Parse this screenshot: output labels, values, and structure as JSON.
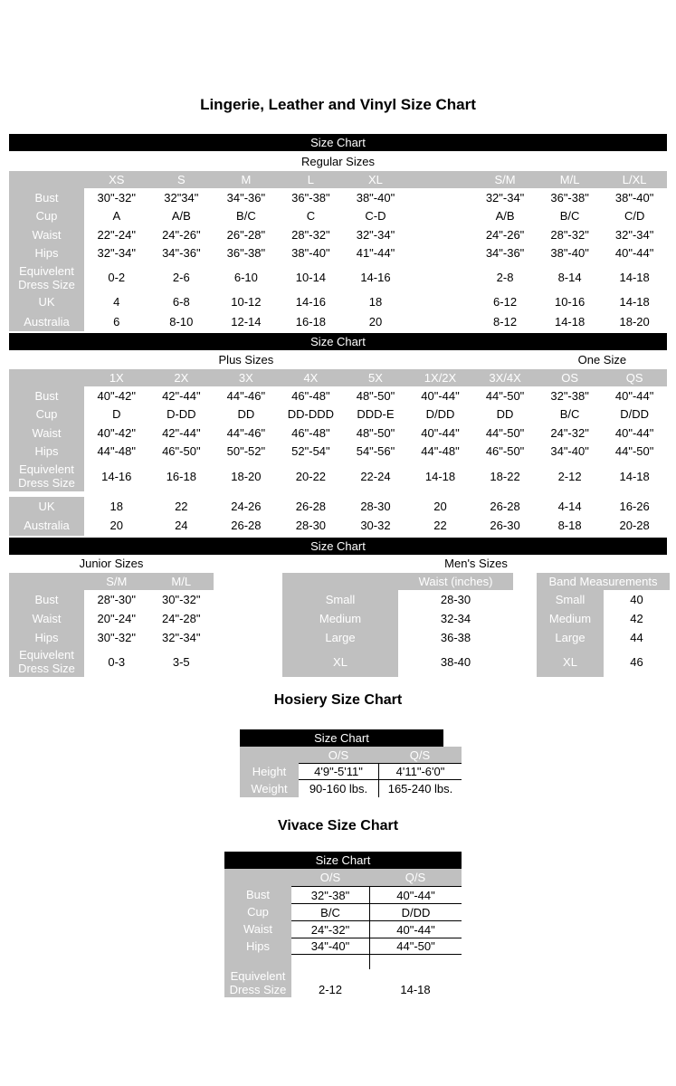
{
  "page": {
    "title": "Lingerie, Leather and Vinyl Size Chart"
  },
  "size_chart_label": "Size Chart",
  "regular": {
    "subtitle": "Regular Sizes",
    "columns": [
      "XS",
      "S",
      "M",
      "L",
      "XL",
      "",
      "S/M",
      "M/L",
      "L/XL"
    ],
    "rows": [
      {
        "label": "Bust",
        "cells": [
          "30\"-32\"",
          "32\"34\"",
          "34\"-36\"",
          "36\"-38\"",
          "38\"-40\"",
          "",
          "32\"-34\"",
          "36\"-38\"",
          "38\"-40\""
        ]
      },
      {
        "label": "Cup",
        "cells": [
          "A",
          "A/B",
          "B/C",
          "C",
          "C-D",
          "",
          "A/B",
          "B/C",
          "C/D"
        ]
      },
      {
        "label": "Waist",
        "cells": [
          "22\"-24\"",
          "24\"-26\"",
          "26\"-28\"",
          "28\"-32\"",
          "32\"-34\"",
          "",
          "24\"-26\"",
          "28\"-32\"",
          "32\"-34\""
        ]
      },
      {
        "label": "Hips",
        "cells": [
          "32\"-34\"",
          "34\"-36\"",
          "36\"-38\"",
          "38\"-40\"",
          "41\"-44\"",
          "",
          "34\"-36\"",
          "38\"-40\"",
          "40\"-44\""
        ]
      },
      {
        "label": "Equivelent Dress Size",
        "cells": [
          "0-2",
          "2-6",
          "6-10",
          "10-14",
          "14-16",
          "",
          "2-8",
          "8-14",
          "14-18"
        ]
      },
      {
        "label": "UK",
        "cells": [
          "4",
          "6-8",
          "10-12",
          "14-16",
          "18",
          "",
          "6-12",
          "10-16",
          "14-18"
        ]
      },
      {
        "label": "Australia",
        "cells": [
          "6",
          "8-10",
          "12-14",
          "16-18",
          "20",
          "",
          "8-12",
          "14-18",
          "18-20"
        ]
      }
    ]
  },
  "plus": {
    "subtitle_left": "Plus Sizes",
    "subtitle_right": "One Size",
    "columns": [
      "1X",
      "2X",
      "3X",
      "4X",
      "5X",
      "1X/2X",
      "3X/4X",
      "OS",
      "QS"
    ],
    "rows": [
      {
        "label": "Bust",
        "cells": [
          "40\"-42\"",
          "42\"-44\"",
          "44\"-46\"",
          "46\"-48\"",
          "48\"-50\"",
          "40\"-44\"",
          "44\"-50\"",
          "32\"-38\"",
          "40\"-44\""
        ]
      },
      {
        "label": "Cup",
        "cells": [
          "D",
          "D-DD",
          "DD",
          "DD-DDD",
          "DDD-E",
          "D/DD",
          "DD",
          "B/C",
          "D/DD"
        ]
      },
      {
        "label": "Waist",
        "cells": [
          "40\"-42\"",
          "42\"-44\"",
          "44\"-46\"",
          "46\"-48\"",
          "48\"-50\"",
          "40\"-44\"",
          "44\"-50\"",
          "24\"-32\"",
          "40\"-44\""
        ]
      },
      {
        "label": "Hips",
        "cells": [
          "44\"-48\"",
          "46\"-50\"",
          "50\"-52\"",
          "52\"-54\"",
          "54\"-56\"",
          "44\"-48\"",
          "46\"-50\"",
          "34\"-40\"",
          "44\"-50\""
        ]
      },
      {
        "label": "Equivelent Dress Size",
        "cells": [
          "14-16",
          "16-18",
          "18-20",
          "20-22",
          "22-24",
          "14-18",
          "18-22",
          "2-12",
          "14-18"
        ]
      },
      {
        "label": "UK",
        "cells": [
          "18",
          "22",
          "24-26",
          "26-28",
          "28-30",
          "20",
          "26-28",
          "4-14",
          "16-26"
        ]
      },
      {
        "label": "Australia",
        "cells": [
          "20",
          "24",
          "26-28",
          "28-30",
          "30-32",
          "22",
          "26-30",
          "8-18",
          "20-28"
        ]
      }
    ]
  },
  "junior": {
    "title": "Junior Sizes",
    "columns": [
      "S/M",
      "M/L"
    ],
    "rows": [
      {
        "label": "Bust",
        "cells": [
          "28\"-30\"",
          "30\"-32\""
        ]
      },
      {
        "label": "Waist",
        "cells": [
          "20\"-24\"",
          "24\"-28\""
        ]
      },
      {
        "label": "Hips",
        "cells": [
          "30\"-32\"",
          "32\"-34\""
        ]
      },
      {
        "label": "Equivelent Dress Size",
        "cells": [
          "0-3",
          "3-5"
        ]
      }
    ]
  },
  "mens": {
    "title": "Men's Sizes",
    "waist_header": "Waist (inches)",
    "band_header": "Band Measurements",
    "rows": [
      {
        "label": "Small",
        "waist": "28-30",
        "band_label": "Small",
        "band": "40"
      },
      {
        "label": "Medium",
        "waist": "32-34",
        "band_label": "Medium",
        "band": "42"
      },
      {
        "label": "Large",
        "waist": "36-38",
        "band_label": "Large",
        "band": "44"
      },
      {
        "label": "XL",
        "waist": "38-40",
        "band_label": "XL",
        "band": "46"
      }
    ]
  },
  "hosiery": {
    "title": "Hosiery Size Chart",
    "columns": [
      "O/S",
      "Q/S"
    ],
    "rows": [
      {
        "label": "Height",
        "cells": [
          "4'9\"-5'11\"",
          "4'11\"-6'0\""
        ]
      },
      {
        "label": "Weight",
        "cells": [
          "90-160 lbs.",
          "165-240 lbs."
        ]
      }
    ]
  },
  "vivace": {
    "title": "Vivace Size Chart",
    "columns": [
      "O/S",
      "Q/S"
    ],
    "rows": [
      {
        "label": "Bust",
        "cells": [
          "32\"-38\"",
          "40\"-44\""
        ]
      },
      {
        "label": "Cup",
        "cells": [
          "B/C",
          "D/DD"
        ]
      },
      {
        "label": "Waist",
        "cells": [
          "24\"-32\"",
          "40\"-44\""
        ]
      },
      {
        "label": "Hips",
        "cells": [
          "34\"-40\"",
          "44\"-50\""
        ]
      }
    ],
    "dress_row": {
      "label": "Equivelent Dress Size",
      "cells": [
        "2-12",
        "14-18"
      ]
    }
  }
}
